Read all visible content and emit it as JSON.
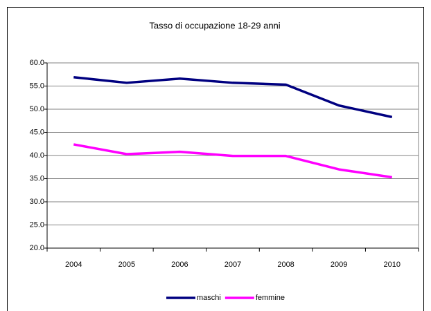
{
  "chart_data": {
    "type": "line",
    "title": "Tasso di occupazione 18-29 anni",
    "categories": [
      "2004",
      "2005",
      "2006",
      "2007",
      "2008",
      "2009",
      "2010"
    ],
    "series": [
      {
        "name": "maschi",
        "color": "#000080",
        "values": [
          56.9,
          55.7,
          56.6,
          55.7,
          55.3,
          50.8,
          48.3
        ]
      },
      {
        "name": "femmine",
        "color": "#ff00ff",
        "values": [
          42.4,
          40.3,
          40.8,
          39.9,
          39.9,
          37.0,
          35.3
        ]
      }
    ],
    "ylim": [
      20,
      60
    ],
    "yticks": [
      {
        "value": 20,
        "label": "20.0"
      },
      {
        "value": 25,
        "label": "25.0"
      },
      {
        "value": 30,
        "label": "30.0"
      },
      {
        "value": 35,
        "label": "35.0"
      },
      {
        "value": 40,
        "label": "40.0"
      },
      {
        "value": 45,
        "label": "45.0"
      },
      {
        "value": 50,
        "label": "50.0"
      },
      {
        "value": 55,
        "label": "55.0"
      },
      {
        "value": 60,
        "label": "60.0"
      }
    ],
    "grid": true,
    "legend": "bottom"
  }
}
